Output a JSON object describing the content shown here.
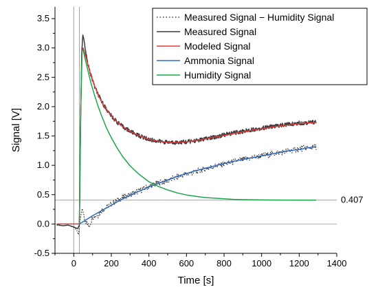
{
  "chart_data": {
    "type": "line",
    "title": "",
    "xlabel": "Time [s]",
    "ylabel": "Signal [V]",
    "xlim": [
      -100,
      1400
    ],
    "ylim": [
      -0.5,
      3.7
    ],
    "x_ticks": [
      0,
      200,
      400,
      600,
      800,
      1000,
      1200,
      1400
    ],
    "y_ticks": [
      -0.5,
      0.0,
      0.5,
      1.0,
      1.5,
      2.0,
      2.5,
      3.0,
      3.5
    ],
    "grid": false,
    "legend_position": "top-right",
    "vertical_lines_x": [
      0,
      30
    ],
    "reference_line": {
      "y": 0.407,
      "label": "0.407",
      "color": "#a0a0a0"
    },
    "zero_line": {
      "y": 0,
      "color": "#b0b0b0"
    },
    "series": [
      {
        "name": "Measured Signal − Humidity Signal",
        "style": "dotted",
        "color": "#333333",
        "points": [
          [
            -90,
            -0.02
          ],
          [
            -60,
            -0.03
          ],
          [
            -30,
            -0.02
          ],
          [
            0,
            -0.06
          ],
          [
            15,
            -0.1
          ],
          [
            25,
            -0.18
          ],
          [
            32,
            0.05
          ],
          [
            45,
            0.26
          ],
          [
            60,
            0.08
          ],
          [
            80,
            -0.05
          ],
          [
            100,
            0.12
          ],
          [
            130,
            0.15
          ],
          [
            150,
            0.24
          ],
          [
            200,
            0.34
          ],
          [
            250,
            0.44
          ],
          [
            300,
            0.5
          ],
          [
            350,
            0.57
          ],
          [
            400,
            0.64
          ],
          [
            450,
            0.7
          ],
          [
            500,
            0.74
          ],
          [
            550,
            0.8
          ],
          [
            600,
            0.85
          ],
          [
            650,
            0.89
          ],
          [
            700,
            0.94
          ],
          [
            750,
            0.98
          ],
          [
            800,
            1.02
          ],
          [
            850,
            1.06
          ],
          [
            900,
            1.1
          ],
          [
            950,
            1.13
          ],
          [
            1000,
            1.16
          ],
          [
            1050,
            1.19
          ],
          [
            1100,
            1.22
          ],
          [
            1150,
            1.25
          ],
          [
            1200,
            1.28
          ],
          [
            1250,
            1.3
          ],
          [
            1290,
            1.31
          ]
        ]
      },
      {
        "name": "Measured Signal",
        "style": "solid",
        "color": "#3a3a3a",
        "points": [
          [
            -90,
            -0.01
          ],
          [
            -60,
            -0.03
          ],
          [
            -30,
            -0.02
          ],
          [
            0,
            -0.05
          ],
          [
            20,
            -0.08
          ],
          [
            30,
            -0.02
          ],
          [
            36,
            1.6
          ],
          [
            42,
            2.9
          ],
          [
            48,
            3.22
          ],
          [
            54,
            3.15
          ],
          [
            62,
            2.95
          ],
          [
            75,
            2.72
          ],
          [
            90,
            2.55
          ],
          [
            110,
            2.35
          ],
          [
            130,
            2.2
          ],
          [
            150,
            2.08
          ],
          [
            175,
            1.95
          ],
          [
            200,
            1.84
          ],
          [
            230,
            1.74
          ],
          [
            260,
            1.66
          ],
          [
            300,
            1.58
          ],
          [
            350,
            1.5
          ],
          [
            400,
            1.44
          ],
          [
            450,
            1.41
          ],
          [
            500,
            1.39
          ],
          [
            550,
            1.39
          ],
          [
            600,
            1.4
          ],
          [
            650,
            1.42
          ],
          [
            700,
            1.45
          ],
          [
            750,
            1.48
          ],
          [
            800,
            1.52
          ],
          [
            850,
            1.55
          ],
          [
            900,
            1.58
          ],
          [
            950,
            1.61
          ],
          [
            1000,
            1.63
          ],
          [
            1050,
            1.66
          ],
          [
            1100,
            1.68
          ],
          [
            1150,
            1.7
          ],
          [
            1200,
            1.72
          ],
          [
            1250,
            1.73
          ],
          [
            1290,
            1.74
          ]
        ]
      },
      {
        "name": "Modeled Signal",
        "style": "solid",
        "color": "#e03a3a",
        "points": [
          [
            -90,
            0.0
          ],
          [
            0,
            0.0
          ],
          [
            30,
            0.0
          ],
          [
            36,
            1.8
          ],
          [
            44,
            2.95
          ],
          [
            50,
            3.0
          ],
          [
            60,
            2.9
          ],
          [
            75,
            2.72
          ],
          [
            90,
            2.55
          ],
          [
            110,
            2.36
          ],
          [
            130,
            2.2
          ],
          [
            150,
            2.07
          ],
          [
            175,
            1.95
          ],
          [
            200,
            1.84
          ],
          [
            230,
            1.74
          ],
          [
            260,
            1.66
          ],
          [
            300,
            1.58
          ],
          [
            350,
            1.5
          ],
          [
            400,
            1.44
          ],
          [
            450,
            1.41
          ],
          [
            500,
            1.39
          ],
          [
            550,
            1.39
          ],
          [
            600,
            1.4
          ],
          [
            650,
            1.42
          ],
          [
            700,
            1.45
          ],
          [
            750,
            1.48
          ],
          [
            800,
            1.51
          ],
          [
            850,
            1.54
          ],
          [
            900,
            1.57
          ],
          [
            950,
            1.6
          ],
          [
            1000,
            1.62
          ],
          [
            1050,
            1.65
          ],
          [
            1100,
            1.67
          ],
          [
            1150,
            1.69
          ],
          [
            1200,
            1.71
          ],
          [
            1250,
            1.72
          ],
          [
            1290,
            1.73
          ]
        ]
      },
      {
        "name": "Ammonia Signal",
        "style": "solid",
        "color": "#2a6bbf",
        "points": [
          [
            30,
            0.0
          ],
          [
            50,
            0.04
          ],
          [
            75,
            0.09
          ],
          [
            100,
            0.14
          ],
          [
            150,
            0.23
          ],
          [
            200,
            0.32
          ],
          [
            250,
            0.41
          ],
          [
            300,
            0.49
          ],
          [
            350,
            0.56
          ],
          [
            400,
            0.63
          ],
          [
            450,
            0.69
          ],
          [
            500,
            0.75
          ],
          [
            550,
            0.81
          ],
          [
            600,
            0.86
          ],
          [
            650,
            0.91
          ],
          [
            700,
            0.95
          ],
          [
            750,
            0.99
          ],
          [
            800,
            1.03
          ],
          [
            850,
            1.07
          ],
          [
            900,
            1.1
          ],
          [
            950,
            1.13
          ],
          [
            1000,
            1.16
          ],
          [
            1050,
            1.19
          ],
          [
            1100,
            1.22
          ],
          [
            1150,
            1.25
          ],
          [
            1200,
            1.27
          ],
          [
            1250,
            1.3
          ],
          [
            1290,
            1.32
          ]
        ]
      },
      {
        "name": "Humidity Signal",
        "style": "solid",
        "color": "#1aa64a",
        "points": [
          [
            30,
            0.0
          ],
          [
            36,
            1.8
          ],
          [
            44,
            2.95
          ],
          [
            50,
            2.97
          ],
          [
            60,
            2.82
          ],
          [
            75,
            2.62
          ],
          [
            90,
            2.42
          ],
          [
            110,
            2.2
          ],
          [
            130,
            2.0
          ],
          [
            150,
            1.83
          ],
          [
            175,
            1.63
          ],
          [
            200,
            1.47
          ],
          [
            230,
            1.3
          ],
          [
            260,
            1.15
          ],
          [
            300,
            0.99
          ],
          [
            350,
            0.84
          ],
          [
            400,
            0.72
          ],
          [
            450,
            0.64
          ],
          [
            500,
            0.58
          ],
          [
            550,
            0.53
          ],
          [
            600,
            0.495
          ],
          [
            650,
            0.47
          ],
          [
            700,
            0.45
          ],
          [
            750,
            0.44
          ],
          [
            800,
            0.43
          ],
          [
            850,
            0.42
          ],
          [
            900,
            0.415
          ],
          [
            1000,
            0.41
          ],
          [
            1100,
            0.408
          ],
          [
            1200,
            0.407
          ],
          [
            1290,
            0.407
          ]
        ]
      }
    ]
  }
}
